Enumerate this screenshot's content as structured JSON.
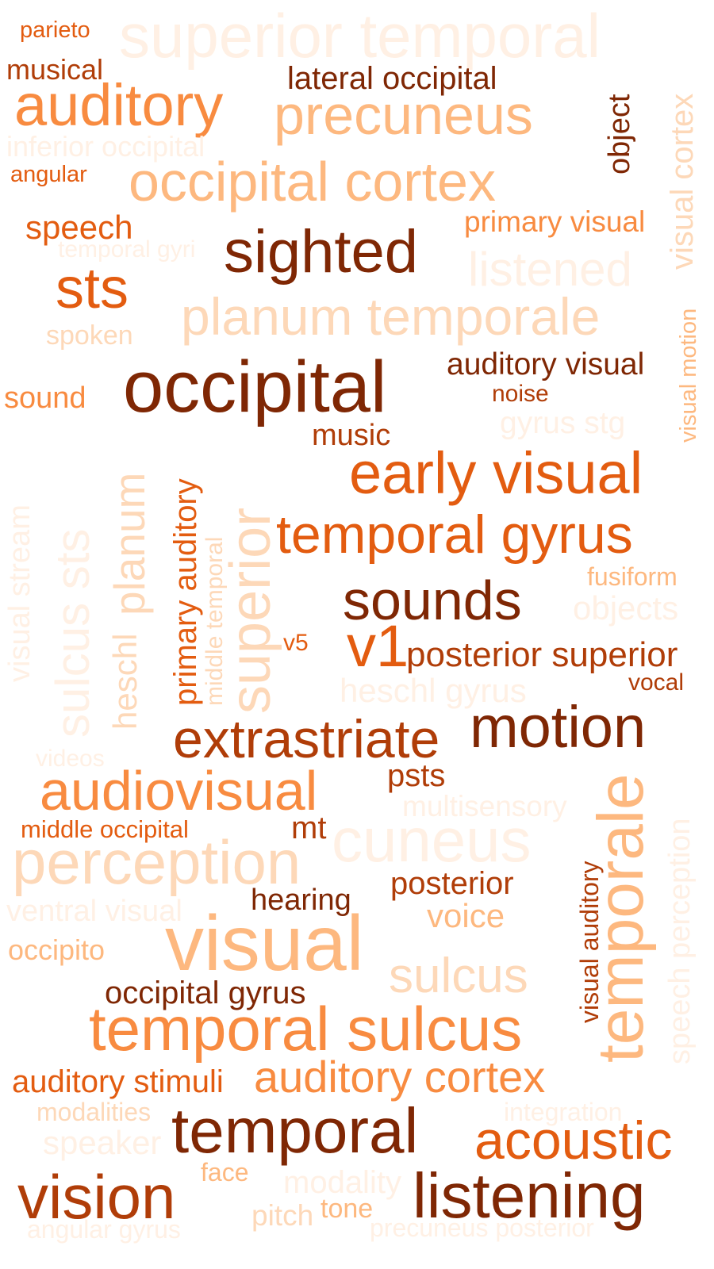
{
  "palette": {
    "c1": "#fff0e4",
    "c2": "#fdd8b8",
    "c3": "#fdb87f",
    "c4": "#f88b40",
    "c5": "#e35c10",
    "c6": "#b03d08",
    "c7": "#7f2704"
  },
  "words": [
    "superior temporal",
    "parieto",
    "musical",
    "auditory",
    "lateral occipital",
    "precuneus",
    "object",
    "visual cortex",
    "inferior occipital",
    "angular",
    "occipital cortex",
    "speech",
    "primary visual",
    "temporal gyri",
    "sighted",
    "listened",
    "sts",
    "planum temporale",
    "spoken",
    "visual motion",
    "auditory visual",
    "occipital",
    "noise",
    "sound",
    "gyrus stg",
    "music",
    "early visual",
    "visual stream",
    "sulcus sts",
    "planum",
    "primary auditory",
    "middle temporal",
    "superior",
    "heschl",
    "temporal gyrus",
    "fusiform",
    "sounds",
    "objects",
    "v5",
    "v1",
    "posterior superior",
    "vocal",
    "heschl gyrus",
    "extrastriate",
    "motion",
    "videos",
    "psts",
    "audiovisual",
    "multisensory",
    "middle occipital",
    "mt",
    "cuneus",
    "temporale",
    "speech perception",
    "perception",
    "posterior",
    "visual auditory",
    "hearing",
    "ventral visual",
    "voice",
    "visual",
    "occipito",
    "sulcus",
    "occipital gyrus",
    "temporal sulcus",
    "auditory stimuli",
    "auditory cortex",
    "modalities",
    "integration",
    "temporal",
    "speaker",
    "acoustic",
    "face",
    "modality",
    "vision",
    "listening",
    "pitch",
    "tone",
    "angular gyrus",
    "precuneus posterior"
  ]
}
